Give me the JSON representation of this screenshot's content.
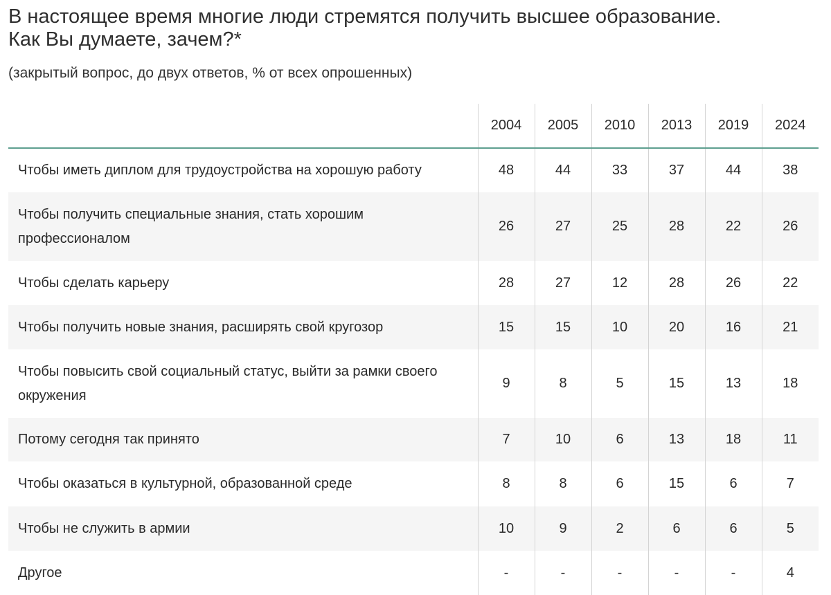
{
  "title_line1": "В настоящее время многие люди стремятся получить высшее образование.",
  "title_line2": "Как Вы думаете, зачем?*",
  "subtitle": "(закрытый вопрос, до двух ответов, % от всех опрошенных)",
  "years": [
    "2004",
    "2005",
    "2010",
    "2013",
    "2019",
    "2024"
  ],
  "rows": [
    {
      "label": "Чтобы иметь диплом для трудоустройства на хорошую работу",
      "values": [
        "48",
        "44",
        "33",
        "37",
        "44",
        "38"
      ]
    },
    {
      "label": "Чтобы получить специальные знания, стать хорошим профессионалом",
      "values": [
        "26",
        "27",
        "25",
        "28",
        "22",
        "26"
      ]
    },
    {
      "label": "Чтобы сделать карьеру",
      "values": [
        "28",
        "27",
        "12",
        "28",
        "26",
        "22"
      ]
    },
    {
      "label": "Чтобы получить новые знания, расширять свой кругозор",
      "values": [
        "15",
        "15",
        "10",
        "20",
        "16",
        "21"
      ]
    },
    {
      "label": "Чтобы повысить свой социальный статус, выйти за рамки своего окружения",
      "values": [
        "9",
        "8",
        "5",
        "15",
        "13",
        "18"
      ]
    },
    {
      "label": "Потому сегодня так принято",
      "values": [
        "7",
        "10",
        "6",
        "13",
        "18",
        "11"
      ]
    },
    {
      "label": "Чтобы оказаться в культурной, образованной среде",
      "values": [
        "8",
        "8",
        "6",
        "15",
        "6",
        "7"
      ]
    },
    {
      "label": "Чтобы не служить в армии",
      "values": [
        "10",
        "9",
        "2",
        "6",
        "6",
        "5"
      ]
    },
    {
      "label": "Другое",
      "values": [
        "-",
        "-",
        "-",
        "-",
        "-",
        "4"
      ]
    }
  ],
  "colors": {
    "header_rule": "#5e9f8f",
    "row_stripe": "#f5f5f5",
    "column_divider": "#d4d4d4"
  }
}
